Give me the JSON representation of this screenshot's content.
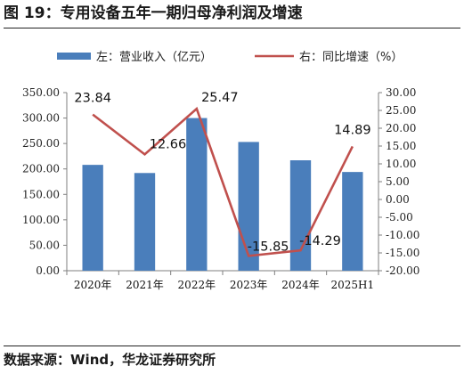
{
  "figure": {
    "title": "图 19：专用设备五年一期归母净利润及增速",
    "source": "数据来源：Wind，华龙证券研究所"
  },
  "chart_data": {
    "type": "bar+line",
    "categories": [
      "2020年",
      "2021年",
      "2022年",
      "2023年",
      "2024年",
      "2025H1"
    ],
    "series": [
      {
        "name": "左：营业收入（亿元）",
        "type": "bar",
        "axis": "left",
        "color": "#4a7ebb",
        "values": [
          208,
          192,
          300,
          253,
          217,
          194
        ]
      },
      {
        "name": "右：同比增速（%）",
        "type": "line",
        "axis": "right",
        "color": "#c0504d",
        "values": [
          23.84,
          12.66,
          25.47,
          -15.85,
          -14.29,
          14.89
        ],
        "labels": [
          "23.84",
          "12.66",
          "25.47",
          "-15.85",
          "-14.29",
          "14.89"
        ]
      }
    ],
    "left_axis": {
      "ylim": [
        0,
        350
      ],
      "ticks": [
        "0.00",
        "50.00",
        "100.00",
        "150.00",
        "200.00",
        "250.00",
        "300.00",
        "350.00"
      ]
    },
    "right_axis": {
      "ylim": [
        -20,
        30
      ],
      "ticks": [
        "-20.00",
        "-15.00",
        "-10.00",
        "-5.00",
        "0.00",
        "5.00",
        "10.00",
        "15.00",
        "20.00",
        "25.00",
        "30.00"
      ]
    },
    "legend_position": "top",
    "grid": false
  }
}
